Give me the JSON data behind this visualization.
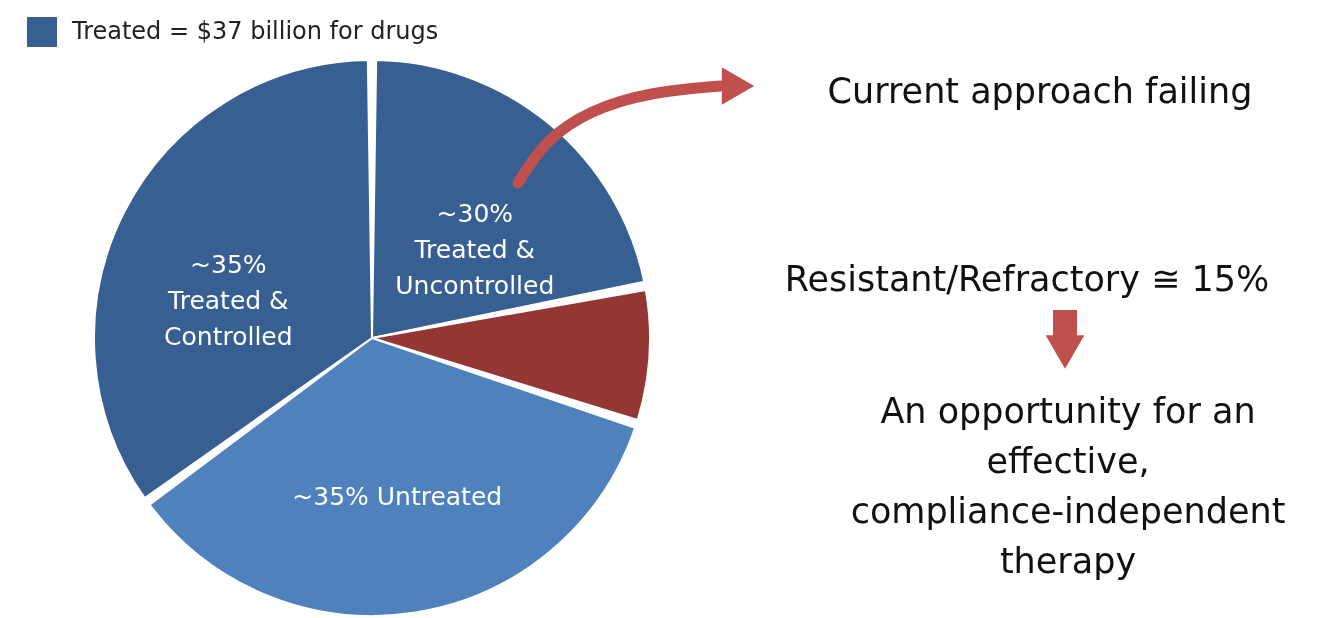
{
  "chart_data": {
    "type": "pie",
    "categories": [
      "~30%\nTreated &\nUncontrolled",
      null,
      "~35% Untreated",
      "~35%\nTreated &\nControlled"
    ],
    "values": [
      22,
      8,
      35,
      35
    ],
    "colors": [
      "#375f92",
      "#943634",
      "#4f81bd",
      "#375f92"
    ],
    "legend_title": "Treated = $37 billion for drugs",
    "annotations": [
      "Current approach failing",
      "Resistant/Refractory ≅ 15%",
      "An opportunity for an\neffective,\ncompliance-independent\ntherapy"
    ]
  }
}
